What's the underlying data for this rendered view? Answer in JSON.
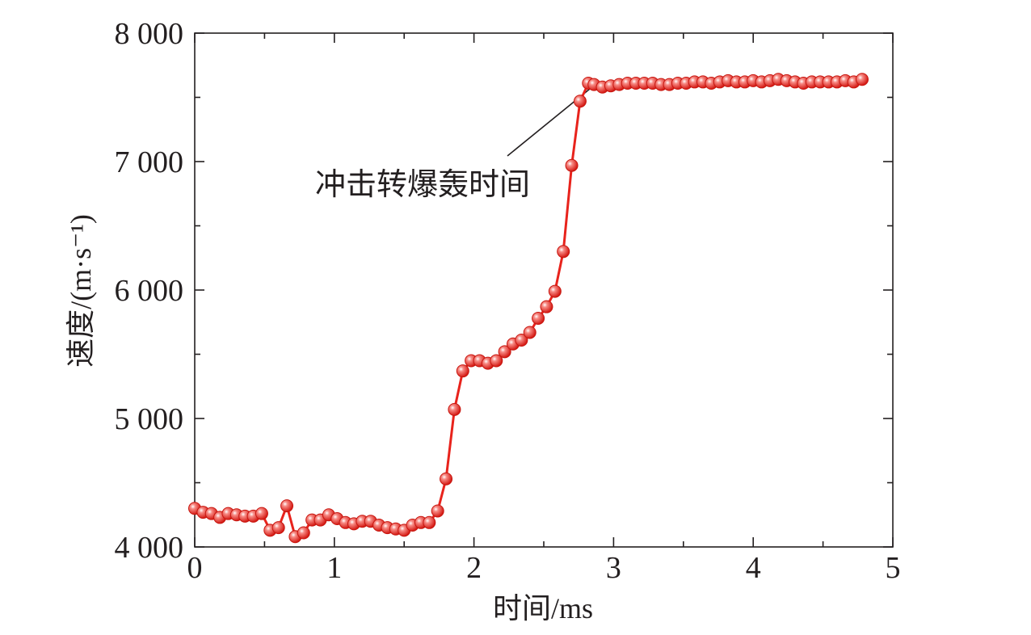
{
  "chart_data": {
    "type": "line",
    "xlabel": "时间/ms",
    "ylabel": "速度/(m·s⁻¹)",
    "xlim": [
      0,
      5
    ],
    "ylim": [
      4000,
      8000
    ],
    "x_ticks": [
      "0",
      "1",
      "2",
      "3",
      "4",
      "5"
    ],
    "y_ticks": [
      "4 000",
      "5 000",
      "6 000",
      "7 000",
      "8 000"
    ],
    "grid": false,
    "series_color": "#e8231c",
    "annotation": {
      "text": "冲击转爆轰时间",
      "x": 2.86,
      "y": 7610
    },
    "series": [
      {
        "x": [
          0.0,
          0.06,
          0.12,
          0.18,
          0.24,
          0.3,
          0.36,
          0.42,
          0.48,
          0.54,
          0.6,
          0.66,
          0.72,
          0.78,
          0.84,
          0.9,
          0.96,
          1.02,
          1.08,
          1.14,
          1.2,
          1.26,
          1.32,
          1.38,
          1.44,
          1.5,
          1.56,
          1.62,
          1.68,
          1.74,
          1.8,
          1.86,
          1.92,
          1.98,
          2.04,
          2.1,
          2.16,
          2.22,
          2.28,
          2.34,
          2.4,
          2.46,
          2.52,
          2.58,
          2.64,
          2.7,
          2.76,
          2.82,
          2.86,
          2.92,
          2.98,
          3.04,
          3.1,
          3.16,
          3.22,
          3.28,
          3.34,
          3.4,
          3.46,
          3.52,
          3.58,
          3.64,
          3.7,
          3.76,
          3.82,
          3.88,
          3.94,
          4.0,
          4.06,
          4.12,
          4.18,
          4.24,
          4.3,
          4.36,
          4.42,
          4.48,
          4.54,
          4.6,
          4.66,
          4.72,
          4.78
        ],
        "y": [
          4300,
          4270,
          4260,
          4230,
          4260,
          4250,
          4240,
          4240,
          4260,
          4130,
          4150,
          4320,
          4080,
          4110,
          4210,
          4210,
          4250,
          4220,
          4190,
          4180,
          4200,
          4200,
          4170,
          4150,
          4140,
          4130,
          4170,
          4190,
          4190,
          4280,
          4530,
          5070,
          5370,
          5450,
          5450,
          5430,
          5450,
          5520,
          5580,
          5610,
          5670,
          5780,
          5870,
          5990,
          6300,
          6970,
          7470,
          7610,
          7600,
          7580,
          7590,
          7600,
          7610,
          7610,
          7610,
          7610,
          7600,
          7600,
          7610,
          7610,
          7620,
          7620,
          7610,
          7620,
          7630,
          7620,
          7620,
          7630,
          7620,
          7630,
          7640,
          7630,
          7620,
          7610,
          7620,
          7620,
          7620,
          7620,
          7630,
          7620,
          7640
        ]
      }
    ]
  }
}
